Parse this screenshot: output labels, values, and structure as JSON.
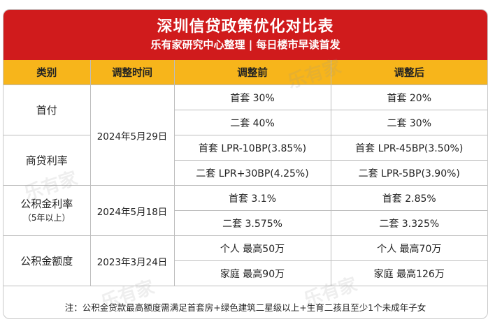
{
  "header": {
    "title": "深圳信贷政策优化对比表",
    "subtitle": "乐有家研究中心整理 | 每日楼市早读首发"
  },
  "table": {
    "columns": [
      "类别",
      "调整时间",
      "调整前",
      "调整后"
    ],
    "groups": [
      {
        "category": "首付",
        "date": "2024年5月29日",
        "rows": [
          {
            "before": "首套 30%",
            "after": "首套 20%"
          },
          {
            "before": "二套 40%",
            "after": "二套 30%"
          }
        ]
      },
      {
        "category": "商贷利率",
        "rows": [
          {
            "before": "首套 LPR-10BP(3.85%)",
            "after": "首套 LPR-45BP(3.50%)"
          },
          {
            "before": "二套 LPR+30BP(4.25%)",
            "after": "二套 LPR-5BP(3.90%)"
          }
        ]
      },
      {
        "category": "公积金利率",
        "category_sub": "（5年以上）",
        "date": "2024年5月18日",
        "rows": [
          {
            "before": "首套 3.1%",
            "after": "首套 2.85%"
          },
          {
            "before": "二套 3.575%",
            "after": "二套 3.325%"
          }
        ]
      },
      {
        "category": "公积金额度",
        "date": "2023年3月24日",
        "rows": [
          {
            "before": "个人 最高50万",
            "after": "个人 最高70万"
          },
          {
            "before": "家庭 最高90万",
            "after": "家庭 最高126万"
          }
        ]
      }
    ]
  },
  "note": "注：公积金贷款最高额度需满足首套房+绿色建筑二星级以上+生育二孩且至少1个未成年子女",
  "watermark": "乐有家",
  "colors": {
    "header_bg": "#d01b1c",
    "column_header_bg": "#f7b51b"
  }
}
